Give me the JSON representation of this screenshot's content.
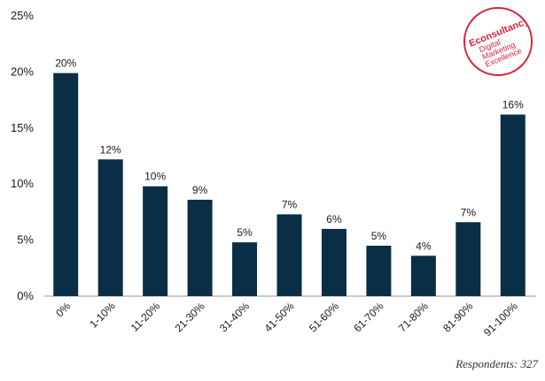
{
  "chart_data": {
    "type": "bar",
    "title": "",
    "xlabel": "",
    "ylabel": "",
    "categories": [
      "0%",
      "1-10%",
      "11-20%",
      "21-30%",
      "31-40%",
      "41-50%",
      "51-60%",
      "61-70%",
      "71-80%",
      "81-90%",
      "91-100%"
    ],
    "values": [
      19.9,
      12.2,
      9.8,
      8.6,
      4.8,
      7.3,
      6.0,
      4.5,
      3.6,
      6.6,
      16.2
    ],
    "data_labels": [
      "20%",
      "12%",
      "10%",
      "9%",
      "5%",
      "7%",
      "6%",
      "5%",
      "4%",
      "7%",
      "16%"
    ],
    "ylim": [
      0,
      25
    ],
    "yticks": [
      0,
      5,
      10,
      15,
      20,
      25
    ],
    "ytick_labels": [
      "0%",
      "5%",
      "10%",
      "15%",
      "20%",
      "25%"
    ],
    "grid": false,
    "legend": "none",
    "bar_color": "#0a2e45"
  },
  "footer": {
    "respondents": "Respondents: 327"
  },
  "logo": {
    "line1": "Econsultancy",
    "line2": "Digital",
    "line3": "Marketing",
    "line4": "Excellence",
    "color": "#d9243a"
  }
}
